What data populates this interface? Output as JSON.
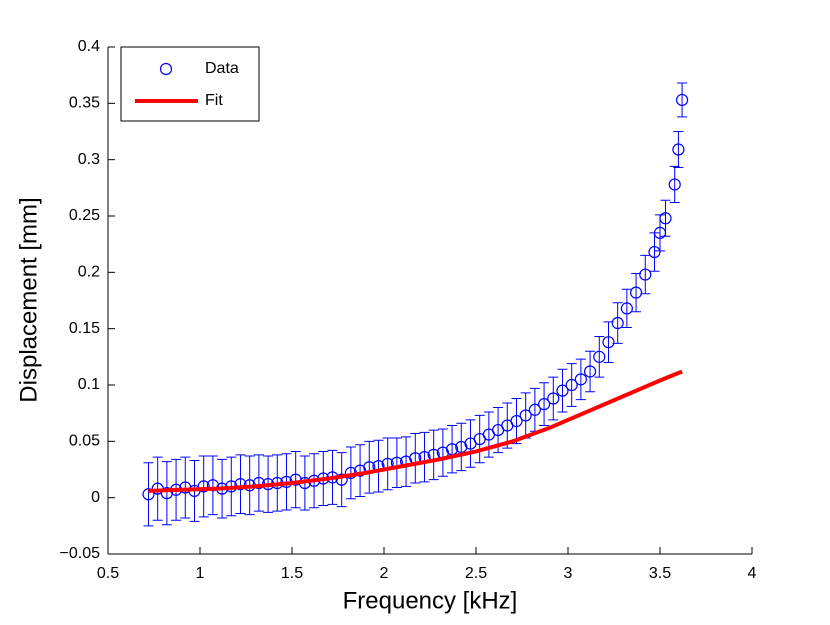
{
  "chart_data": {
    "type": "errorbar",
    "xlabel": "Frequency [kHz]",
    "ylabel": "Displacement [mm]",
    "xlim": [
      0.5,
      4
    ],
    "ylim": [
      -0.05,
      0.4
    ],
    "xticks": [
      0.5,
      1,
      1.5,
      2,
      2.5,
      3,
      3.5,
      4
    ],
    "yticks": [
      {
        "value": -0.05,
        "label": "−0.05"
      },
      0,
      0.05,
      0.1,
      0.15,
      0.2,
      0.25,
      0.3,
      0.35,
      0.4
    ],
    "grid": false,
    "legend": "upper left",
    "series": [
      {
        "name": "Data",
        "color": "#0000ff",
        "marker": "circle",
        "x": [
          0.72,
          0.77,
          0.82,
          0.87,
          0.92,
          0.97,
          1.02,
          1.07,
          1.12,
          1.17,
          1.22,
          1.27,
          1.32,
          1.37,
          1.42,
          1.47,
          1.52,
          1.57,
          1.62,
          1.67,
          1.72,
          1.77,
          1.82,
          1.87,
          1.92,
          1.97,
          2.02,
          2.07,
          2.12,
          2.17,
          2.22,
          2.27,
          2.32,
          2.37,
          2.42,
          2.47,
          2.52,
          2.57,
          2.62,
          2.67,
          2.72,
          2.77,
          2.82,
          2.87,
          2.92,
          2.97,
          3.02,
          3.07,
          3.12,
          3.17,
          3.22,
          3.27,
          3.32,
          3.37,
          3.42,
          3.47,
          3.5,
          3.53,
          3.58,
          3.6,
          3.62
        ],
        "values": [
          0.003,
          0.008,
          0.004,
          0.007,
          0.009,
          0.006,
          0.01,
          0.011,
          0.008,
          0.01,
          0.012,
          0.011,
          0.013,
          0.012,
          0.013,
          0.014,
          0.016,
          0.013,
          0.015,
          0.017,
          0.018,
          0.016,
          0.022,
          0.024,
          0.027,
          0.028,
          0.03,
          0.031,
          0.032,
          0.035,
          0.036,
          0.038,
          0.04,
          0.043,
          0.045,
          0.048,
          0.052,
          0.056,
          0.06,
          0.064,
          0.068,
          0.073,
          0.078,
          0.083,
          0.088,
          0.095,
          0.1,
          0.105,
          0.112,
          0.125,
          0.138,
          0.155,
          0.168,
          0.182,
          0.198,
          0.218,
          0.235,
          0.248,
          0.278,
          0.309,
          0.353
        ],
        "errors": [
          0.028,
          0.028,
          0.028,
          0.027,
          0.027,
          0.027,
          0.027,
          0.026,
          0.026,
          0.026,
          0.026,
          0.026,
          0.025,
          0.025,
          0.025,
          0.025,
          0.025,
          0.024,
          0.024,
          0.024,
          0.024,
          0.024,
          0.023,
          0.023,
          0.023,
          0.023,
          0.023,
          0.022,
          0.022,
          0.022,
          0.022,
          0.022,
          0.021,
          0.021,
          0.021,
          0.021,
          0.021,
          0.02,
          0.02,
          0.02,
          0.02,
          0.02,
          0.019,
          0.019,
          0.019,
          0.019,
          0.019,
          0.018,
          0.018,
          0.018,
          0.018,
          0.018,
          0.017,
          0.017,
          0.017,
          0.017,
          0.016,
          0.016,
          0.016,
          0.016,
          0.015
        ]
      },
      {
        "name": "Fit",
        "color": "#ff0000",
        "marker": "line",
        "x": [
          0.72,
          0.9,
          1.1,
          1.3,
          1.5,
          1.7,
          1.9,
          2.1,
          2.3,
          2.5,
          2.7,
          2.9,
          3.1,
          3.3,
          3.5,
          3.62
        ],
        "values": [
          0.006,
          0.007,
          0.008,
          0.01,
          0.013,
          0.017,
          0.022,
          0.028,
          0.034,
          0.041,
          0.05,
          0.062,
          0.076,
          0.09,
          0.104,
          0.112
        ]
      }
    ]
  }
}
